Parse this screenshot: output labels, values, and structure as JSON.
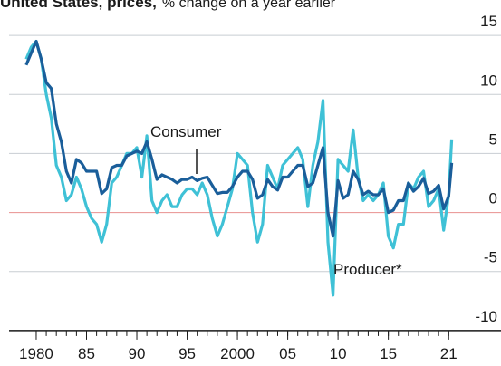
{
  "chart_data": {
    "type": "line",
    "title": "United States, prices,",
    "subtitle": "% change on a year earlier",
    "x": [
      1979.0,
      1979.5,
      1980.0,
      1980.5,
      1981.0,
      1981.5,
      1982.0,
      1982.5,
      1983.0,
      1983.5,
      1984.0,
      1984.5,
      1985.0,
      1985.5,
      1986.0,
      1986.5,
      1987.0,
      1987.5,
      1988.0,
      1988.5,
      1989.0,
      1989.5,
      1990.0,
      1990.5,
      1991.0,
      1991.5,
      1992.0,
      1992.5,
      1993.0,
      1993.5,
      1994.0,
      1994.5,
      1995.0,
      1995.5,
      1996.0,
      1996.5,
      1997.0,
      1997.5,
      1998.0,
      1998.5,
      1999.0,
      1999.5,
      2000.0,
      2000.5,
      2001.0,
      2001.5,
      2002.0,
      2002.5,
      2003.0,
      2003.5,
      2004.0,
      2004.5,
      2005.0,
      2005.5,
      2006.0,
      2006.5,
      2007.0,
      2007.5,
      2008.0,
      2008.5,
      2009.0,
      2009.5,
      2010.0,
      2010.5,
      2011.0,
      2011.5,
      2012.0,
      2012.5,
      2013.0,
      2013.5,
      2014.0,
      2014.5,
      2015.0,
      2015.5,
      2016.0,
      2016.5,
      2017.0,
      2017.5,
      2018.0,
      2018.5,
      2019.0,
      2019.5,
      2020.0,
      2020.5,
      2021.0,
      2021.3
    ],
    "series": [
      {
        "name": "Producer*",
        "color": "#3fc1d6",
        "values": [
          13,
          14,
          14.5,
          13,
          10,
          8,
          4,
          3,
          1,
          1.5,
          3,
          2,
          0.5,
          -0.5,
          -1,
          -2.5,
          -1,
          2.5,
          3,
          4,
          5,
          5,
          5.5,
          3,
          6.5,
          1,
          0,
          1,
          1.5,
          0.5,
          0.5,
          1.5,
          2,
          2,
          1.5,
          2.5,
          1.5,
          -0.5,
          -2,
          -1,
          0.5,
          2,
          5,
          4.5,
          4,
          0,
          -2.5,
          -1,
          4,
          3,
          2,
          4,
          4.5,
          5,
          5.5,
          4.5,
          0.5,
          4,
          6,
          9.5,
          -2.5,
          -7,
          4.5,
          4,
          3.5,
          7,
          3,
          1,
          1.5,
          1,
          1.5,
          2.5,
          -2,
          -3,
          -1,
          -1,
          2.5,
          2,
          3,
          3.5,
          0.5,
          1,
          2,
          -1.5,
          1.5,
          6.2
        ]
      },
      {
        "name": "Consumer",
        "color": "#1a5e9a",
        "values": [
          12.5,
          13.5,
          14.5,
          13,
          11,
          10.5,
          7.5,
          6,
          3.5,
          2.5,
          4.5,
          4.2,
          3.5,
          3.5,
          3.5,
          1.6,
          2,
          3.8,
          4,
          4,
          4.8,
          5,
          5.2,
          5,
          6,
          4.5,
          2.8,
          3.2,
          3,
          2.8,
          2.5,
          2.8,
          2.8,
          3,
          2.7,
          2.9,
          3,
          2.3,
          1.6,
          1.7,
          1.7,
          2.2,
          3,
          3.5,
          3.5,
          2.8,
          1.2,
          1.5,
          2.8,
          2.2,
          1.9,
          3,
          3,
          3.5,
          4,
          4,
          2.2,
          2.5,
          4,
          5.5,
          0,
          -2,
          2.7,
          1.2,
          1.5,
          3.5,
          2.8,
          1.5,
          1.8,
          1.5,
          1.5,
          2,
          0,
          0.2,
          1,
          1,
          2.5,
          1.8,
          2.2,
          2.9,
          1.6,
          1.8,
          2.3,
          0.3,
          1.4,
          4.2
        ]
      }
    ],
    "xlim": [
      1976.4,
      2026.2
    ],
    "xticks": [
      1980,
      {
        "value": 1985,
        "label": "85"
      },
      {
        "value": 1990,
        "label": "90"
      },
      {
        "value": 1995,
        "label": "95"
      },
      2000,
      {
        "value": 2005,
        "label": "05"
      },
      {
        "value": 2010,
        "label": "10"
      },
      {
        "value": 2015,
        "label": "15"
      },
      {
        "value": 2021,
        "label": "21"
      }
    ],
    "minor_xticks": [
      1980,
      1981,
      1982,
      1983,
      1984,
      1985,
      1986,
      1987,
      1988,
      1989,
      1990,
      1991,
      1992,
      1993,
      1994,
      1995,
      1996,
      1997,
      1998,
      1999,
      2000,
      2001,
      2002,
      2003,
      2004,
      2005,
      2006,
      2007,
      2008,
      2009,
      2010,
      2011,
      2012,
      2013,
      2014,
      2015,
      2016,
      2017,
      2018,
      2019,
      2020,
      2021
    ],
    "ylim": [
      -13,
      18
    ],
    "yticks": [
      15,
      10,
      5,
      0,
      -5,
      -10
    ],
    "grid": true,
    "zero_line_color": "#e8918f"
  }
}
